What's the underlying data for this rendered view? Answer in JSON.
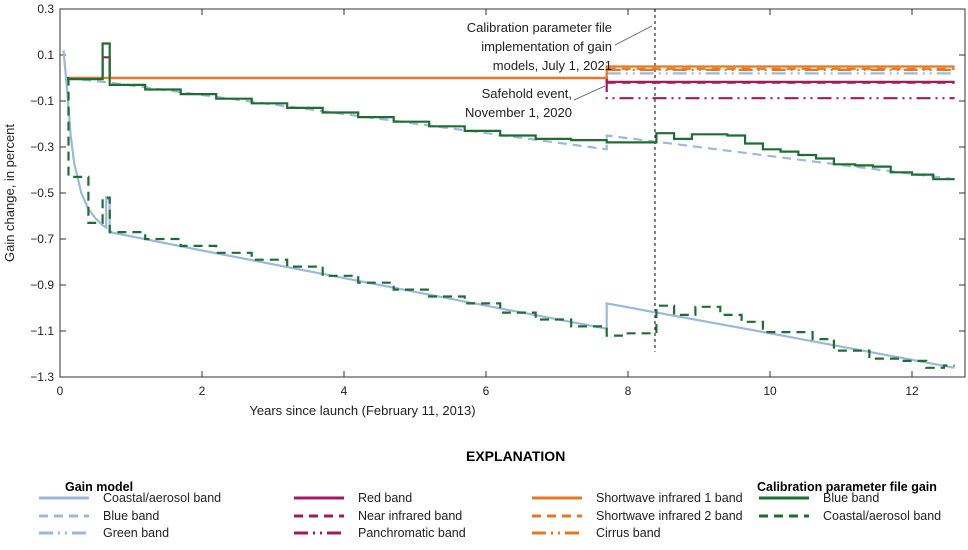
{
  "chart_data": {
    "type": "line",
    "xlabel": "Years since launch (February 11, 2013)",
    "ylabel": "Gain change, in percent",
    "xlim": [
      0,
      12.7
    ],
    "ylim": [
      -1.3,
      0.3
    ],
    "xticks": [
      0,
      2,
      4,
      6,
      8,
      10,
      12
    ],
    "yticks": [
      0.3,
      0.1,
      -0.1,
      -0.3,
      -0.5,
      -0.7,
      -0.9,
      -1.1,
      -1.3
    ],
    "grid": false,
    "colors": {
      "coastal_blue": "#9bb8dd",
      "red": "#a3185f",
      "swir": "#e87722",
      "cpf": "#1e6e33"
    },
    "annotations": [
      {
        "text_lines": [
          "Calibration parameter file",
          "implementation of gain",
          "models, July 1, 2021"
        ],
        "x": 8.38
      },
      {
        "text_lines": [
          "Safehold event,",
          "November 1, 2020"
        ],
        "x": 7.72
      }
    ],
    "event_line_x": 8.38,
    "legend_title": "EXPLANATION",
    "legend_group_gain_model": "Gain model",
    "legend_group_cpf": "Calibration parameter file gain",
    "series": [
      {
        "name": "Coastal/aerosol band",
        "group": "gain model",
        "color": "#9bb8dd",
        "dash": "solid",
        "points": [
          [
            0.05,
            0.12
          ],
          [
            0.1,
            -0.05
          ],
          [
            0.15,
            -0.25
          ],
          [
            0.2,
            -0.37
          ],
          [
            0.3,
            -0.5
          ],
          [
            0.4,
            -0.57
          ],
          [
            0.5,
            -0.61
          ],
          [
            0.6,
            -0.64
          ],
          [
            0.65,
            -0.65
          ],
          [
            0.65,
            -0.52
          ],
          [
            0.7,
            -0.53
          ],
          [
            0.7,
            -0.67
          ],
          [
            2,
            -0.75
          ],
          [
            4,
            -0.87
          ],
          [
            6,
            -0.99
          ],
          [
            7.7,
            -1.09
          ],
          [
            7.7,
            -0.98
          ],
          [
            10,
            -1.11
          ],
          [
            12.6,
            -1.26
          ]
        ]
      },
      {
        "name": "Blue band",
        "group": "gain model",
        "color": "#9bb8dd",
        "dash": "dash",
        "points": [
          [
            0.1,
            0
          ],
          [
            0.7,
            -0.02
          ],
          [
            7.7,
            -0.31
          ],
          [
            7.7,
            -0.25
          ],
          [
            12.6,
            -0.44
          ]
        ]
      },
      {
        "name": "Green band",
        "group": "gain model",
        "color": "#9bb8dd",
        "dash": "dashdotdot",
        "points": [
          [
            7.7,
            0.02
          ],
          [
            12.6,
            0.02
          ]
        ]
      },
      {
        "name": "Red band",
        "group": "gain model",
        "color": "#a3185f",
        "dash": "solid",
        "points": [
          [
            0.1,
            0
          ],
          [
            0.6,
            0
          ],
          [
            0.6,
            0.09
          ],
          [
            0.7,
            0.09
          ],
          [
            0.7,
            0
          ],
          [
            7.7,
            0
          ],
          [
            7.7,
            -0.017
          ],
          [
            12.6,
            -0.017
          ]
        ]
      },
      {
        "name": "Near infrared band",
        "group": "gain model",
        "color": "#a3185f",
        "dash": "dash",
        "points": [
          [
            7.7,
            -0.02
          ],
          [
            12.6,
            -0.02
          ]
        ]
      },
      {
        "name": "Panchromatic band",
        "group": "gain model",
        "color": "#a3185f",
        "dash": "dashdotdot",
        "points": [
          [
            7.7,
            0
          ],
          [
            7.7,
            -0.088
          ],
          [
            12.6,
            -0.088
          ]
        ]
      },
      {
        "name": "Shortwave infrared 1 band",
        "group": "gain model",
        "color": "#e87722",
        "dash": "solid",
        "points": [
          [
            0.1,
            0
          ],
          [
            7.7,
            0
          ],
          [
            7.7,
            0.05
          ],
          [
            12.6,
            0.05
          ]
        ]
      },
      {
        "name": "Shortwave infrared 2 band",
        "group": "gain model",
        "color": "#e87722",
        "dash": "dash",
        "points": [
          [
            7.7,
            0.04
          ],
          [
            12.6,
            0.04
          ]
        ]
      },
      {
        "name": "Cirrus band",
        "group": "gain model",
        "color": "#e87722",
        "dash": "dashdotdot",
        "points": [
          [
            7.7,
            0.035
          ],
          [
            12.6,
            0.035
          ]
        ]
      },
      {
        "name": "Blue band",
        "group": "calibration parameter file gain",
        "color": "#1e6e33",
        "dash": "solid",
        "step": true,
        "points": [
          [
            0.1,
            -0.005
          ],
          [
            0.6,
            0.15
          ],
          [
            0.7,
            -0.03
          ],
          [
            1.2,
            -0.05
          ],
          [
            1.7,
            -0.07
          ],
          [
            2.2,
            -0.09
          ],
          [
            2.7,
            -0.11
          ],
          [
            3.2,
            -0.13
          ],
          [
            3.7,
            -0.15
          ],
          [
            4.2,
            -0.17
          ],
          [
            4.7,
            -0.19
          ],
          [
            5.2,
            -0.21
          ],
          [
            5.7,
            -0.23
          ],
          [
            6.2,
            -0.25
          ],
          [
            6.7,
            -0.265
          ],
          [
            7.2,
            -0.27
          ],
          [
            7.7,
            -0.28
          ],
          [
            8.4,
            -0.24
          ],
          [
            8.65,
            -0.265
          ],
          [
            8.9,
            -0.245
          ],
          [
            9.4,
            -0.25
          ],
          [
            9.65,
            -0.285
          ],
          [
            9.9,
            -0.31
          ],
          [
            10.15,
            -0.32
          ],
          [
            10.4,
            -0.335
          ],
          [
            10.65,
            -0.35
          ],
          [
            10.9,
            -0.375
          ],
          [
            11.2,
            -0.38
          ],
          [
            11.45,
            -0.385
          ],
          [
            11.7,
            -0.41
          ],
          [
            12.0,
            -0.42
          ],
          [
            12.3,
            -0.44
          ],
          [
            12.6,
            -0.44
          ]
        ]
      },
      {
        "name": "Coastal/aerosol band",
        "group": "calibration parameter file gain",
        "color": "#1e6e33",
        "dash": "dash",
        "step": true,
        "points": [
          [
            0.1,
            0
          ],
          [
            0.12,
            -0.43
          ],
          [
            0.4,
            -0.63
          ],
          [
            0.6,
            -0.52
          ],
          [
            0.7,
            -0.67
          ],
          [
            1.2,
            -0.7
          ],
          [
            1.7,
            -0.73
          ],
          [
            2.2,
            -0.76
          ],
          [
            2.7,
            -0.79
          ],
          [
            3.2,
            -0.82
          ],
          [
            3.7,
            -0.86
          ],
          [
            4.2,
            -0.89
          ],
          [
            4.7,
            -0.92
          ],
          [
            5.2,
            -0.95
          ],
          [
            5.7,
            -0.98
          ],
          [
            6.2,
            -1.02
          ],
          [
            6.7,
            -1.05
          ],
          [
            7.2,
            -1.08
          ],
          [
            7.7,
            -1.12
          ],
          [
            7.95,
            -1.11
          ],
          [
            8.4,
            -0.99
          ],
          [
            8.65,
            -1.03
          ],
          [
            8.95,
            -0.995
          ],
          [
            9.3,
            -1.03
          ],
          [
            9.6,
            -1.06
          ],
          [
            9.9,
            -1.105
          ],
          [
            10.6,
            -1.135
          ],
          [
            10.9,
            -1.185
          ],
          [
            11.4,
            -1.22
          ],
          [
            11.8,
            -1.23
          ],
          [
            12.2,
            -1.26
          ],
          [
            12.45,
            -1.25
          ],
          [
            12.6,
            -1.25
          ]
        ]
      }
    ]
  }
}
